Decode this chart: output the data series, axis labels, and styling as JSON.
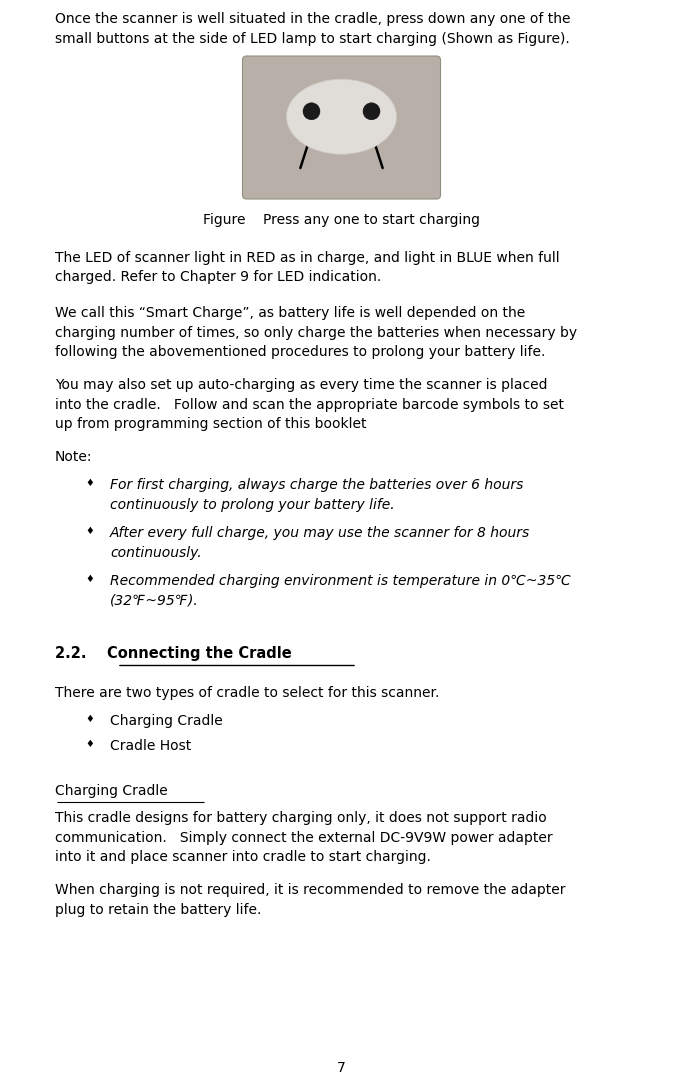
{
  "page_width": 6.83,
  "page_height": 10.81,
  "dpi": 100,
  "bg_color": "#ffffff",
  "text_color": "#000000",
  "lm_inches": 0.08,
  "fs_body": 10.0,
  "fs_section": 10.5,
  "para1": "Once the scanner is well situated in the cradle, press down any one of the\nsmall buttons at the side of LED lamp to start charging (Shown as Figure).",
  "fig_caption": "Figure    Press any one to start charging",
  "para2": "The LED of scanner light in RED as in charge, and light in BLUE when full\ncharged. Refer to Chapter 9 for LED indication.",
  "para3": "We call this “Smart Charge”, as battery life is well depended on the\ncharging number of times, so only charge the batteries when necessary by\nfollowing the abovementioned procedures to prolong your battery life.",
  "para4": "You may also set up auto-charging as every time the scanner is placed\ninto the cradle.   Follow and scan the appropriate barcode symbols to set\nup from programming section of this booklet",
  "note_label": "Note:",
  "bullet1": "For first charging, always charge the batteries over 6 hours\ncontinuously to prolong your battery life.",
  "bullet2": "After every full charge, you may use the scanner for 8 hours\ncontinuously.",
  "bullet3": "Recommended charging environment is temperature in 0℃~35℃\n(32℉~95℉).",
  "section_num": "2.2.",
  "section_title": "Connecting the Cradle",
  "para5": "There are two types of cradle to select for this scanner.",
  "bullet4": "Charging Cradle",
  "bullet5": "Cradle Host",
  "subsection_title": "Charging Cradle",
  "para6": "This cradle designs for battery charging only, it does not support radio\ncommunication.   Simply connect the external DC-9V9W power adapter\ninto it and place scanner into cradle to start charging.",
  "para7": "When charging is not required, it is recommended to remove the adapter\nplug to retain the battery life.",
  "page_number": "7",
  "img_bg": "#b8b0a8",
  "img_dome": "#ccc8c0",
  "img_dome2": "#e0dcd8",
  "img_btn": "#1a1a1a",
  "arrow_color": "#000000"
}
